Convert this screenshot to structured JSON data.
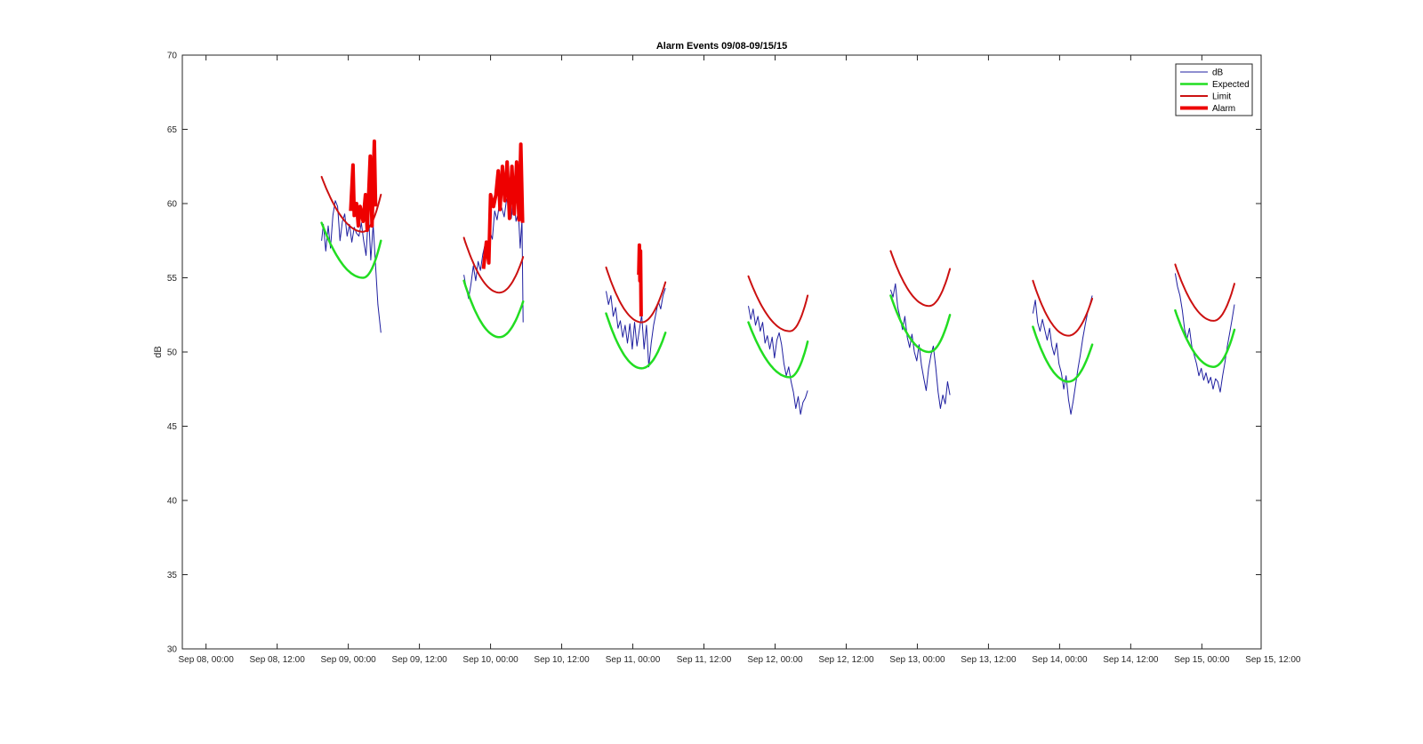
{
  "chart_data": {
    "type": "line",
    "title": "Alarm Events 09/08-09/15/15",
    "ylabel": "dB",
    "xlabel": "",
    "ylim": [
      30,
      70
    ],
    "yticks": [
      30,
      35,
      40,
      45,
      50,
      55,
      60,
      65,
      70
    ],
    "xlim_hours": [
      -4,
      178
    ],
    "xticks": [
      {
        "label": "Sep 08, 00:00",
        "hour": 0
      },
      {
        "label": "Sep 08, 12:00",
        "hour": 12
      },
      {
        "label": "Sep 09, 00:00",
        "hour": 24
      },
      {
        "label": "Sep 09, 12:00",
        "hour": 36
      },
      {
        "label": "Sep 10, 00:00",
        "hour": 48
      },
      {
        "label": "Sep 10, 12:00",
        "hour": 60
      },
      {
        "label": "Sep 11, 00:00",
        "hour": 72
      },
      {
        "label": "Sep 11, 12:00",
        "hour": 84
      },
      {
        "label": "Sep 12, 00:00",
        "hour": 96
      },
      {
        "label": "Sep 12, 12:00",
        "hour": 108
      },
      {
        "label": "Sep 13, 00:00",
        "hour": 120
      },
      {
        "label": "Sep 13, 12:00",
        "hour": 132
      },
      {
        "label": "Sep 14, 00:00",
        "hour": 144
      },
      {
        "label": "Sep 14, 12:00",
        "hour": 156
      },
      {
        "label": "Sep 15, 00:00",
        "hour": 168
      },
      {
        "label": "Sep 15, 12:00",
        "hour": 180
      }
    ],
    "legend": {
      "placement": "top-right",
      "entries": [
        {
          "name": "dB",
          "color": "#1f1fa0",
          "width": 1
        },
        {
          "name": "Expected",
          "color": "#22dd22",
          "width": 2.5
        },
        {
          "name": "Limit",
          "color": "#cc1111",
          "width": 2
        },
        {
          "name": "Alarm",
          "color": "#ee0000",
          "width": 4
        }
      ]
    },
    "segments": [
      {
        "t0": 19.5,
        "t1": 29.5,
        "expected": {
          "start": 58.7,
          "min": 55.0,
          "tmin": 26.5,
          "end": 57.5
        },
        "limit": {
          "start": 61.8,
          "min": 58.1,
          "tmin": 26.5,
          "end": 60.6
        },
        "db": [
          [
            19.5,
            57.5
          ],
          [
            19.8,
            58.6
          ],
          [
            20.2,
            56.8
          ],
          [
            20.6,
            58.5
          ],
          [
            21.0,
            57.0
          ],
          [
            21.4,
            59.2
          ],
          [
            21.8,
            60.2
          ],
          [
            22.2,
            59.8
          ],
          [
            22.6,
            57.5
          ],
          [
            23.0,
            58.8
          ],
          [
            23.4,
            59.3
          ],
          [
            23.8,
            57.8
          ],
          [
            24.2,
            58.6
          ],
          [
            24.6,
            57.4
          ],
          [
            25.0,
            58.4
          ],
          [
            25.4,
            58.0
          ],
          [
            25.8,
            57.8
          ],
          [
            26.2,
            58.7
          ],
          [
            26.6,
            57.5
          ],
          [
            27.0,
            56.5
          ],
          [
            27.4,
            59.4
          ],
          [
            27.8,
            56.2
          ],
          [
            28.2,
            58.6
          ],
          [
            28.6,
            55.8
          ],
          [
            29.0,
            53.2
          ],
          [
            29.5,
            51.3
          ]
        ],
        "alarm": [
          [
            24.4,
            59.5
          ],
          [
            24.8,
            62.6
          ],
          [
            25.0,
            59.2
          ],
          [
            25.4,
            60.0
          ],
          [
            25.7,
            58.5
          ],
          [
            26.0,
            59.8
          ],
          [
            26.5,
            58.8
          ],
          [
            26.9,
            60.6
          ],
          [
            27.2,
            58.2
          ],
          [
            27.7,
            63.2
          ],
          [
            28.0,
            58.5
          ],
          [
            28.4,
            64.2
          ],
          [
            28.6,
            59.8
          ]
        ]
      },
      {
        "t0": 43.5,
        "t1": 53.5,
        "expected": {
          "start": 54.8,
          "min": 51.0,
          "tmin": 49.5,
          "end": 53.4
        },
        "limit": {
          "start": 57.7,
          "min": 54.0,
          "tmin": 49.5,
          "end": 56.4
        },
        "db": [
          [
            43.5,
            55.2
          ],
          [
            43.9,
            54.3
          ],
          [
            44.3,
            53.6
          ],
          [
            44.7,
            54.6
          ],
          [
            45.1,
            55.8
          ],
          [
            45.5,
            54.8
          ],
          [
            45.9,
            56.1
          ],
          [
            46.3,
            55.5
          ],
          [
            46.7,
            56.6
          ],
          [
            47.1,
            57.3
          ],
          [
            47.5,
            56.4
          ],
          [
            47.9,
            58.1
          ],
          [
            48.3,
            57.6
          ],
          [
            48.7,
            59.5
          ],
          [
            49.1,
            58.9
          ],
          [
            49.5,
            60.0
          ],
          [
            49.9,
            59.7
          ],
          [
            50.3,
            59.1
          ],
          [
            50.7,
            60.3
          ],
          [
            51.1,
            59.8
          ],
          [
            51.5,
            59.0
          ],
          [
            51.9,
            60.5
          ],
          [
            52.3,
            58.8
          ],
          [
            52.7,
            59.4
          ],
          [
            53.0,
            57.0
          ],
          [
            53.3,
            58.9
          ],
          [
            53.5,
            52.0
          ]
        ],
        "alarm": [
          [
            46.8,
            55.6
          ],
          [
            47.3,
            57.4
          ],
          [
            47.7,
            56.0
          ],
          [
            48.0,
            60.6
          ],
          [
            48.5,
            59.8
          ],
          [
            48.9,
            60.6
          ],
          [
            49.3,
            62.2
          ],
          [
            49.6,
            59.6
          ],
          [
            50.0,
            62.5
          ],
          [
            50.4,
            60.2
          ],
          [
            50.8,
            62.8
          ],
          [
            51.2,
            59.0
          ],
          [
            51.6,
            62.5
          ],
          [
            52.0,
            59.3
          ],
          [
            52.4,
            62.8
          ],
          [
            52.8,
            58.9
          ],
          [
            53.1,
            64.0
          ],
          [
            53.4,
            58.7
          ]
        ]
      },
      {
        "t0": 67.5,
        "t1": 77.5,
        "expected": {
          "start": 52.6,
          "min": 48.9,
          "tmin": 73.5,
          "end": 51.3
        },
        "limit": {
          "start": 55.7,
          "min": 52.0,
          "tmin": 73.5,
          "end": 54.7
        },
        "db": [
          [
            67.5,
            54.1
          ],
          [
            67.9,
            53.2
          ],
          [
            68.3,
            53.8
          ],
          [
            68.7,
            52.4
          ],
          [
            69.1,
            53.0
          ],
          [
            69.5,
            51.6
          ],
          [
            69.9,
            52.1
          ],
          [
            70.3,
            51.0
          ],
          [
            70.7,
            51.8
          ],
          [
            71.1,
            50.6
          ],
          [
            71.5,
            51.9
          ],
          [
            71.9,
            50.2
          ],
          [
            72.3,
            52.0
          ],
          [
            72.7,
            50.4
          ],
          [
            73.1,
            51.5
          ],
          [
            73.5,
            52.5
          ],
          [
            73.9,
            50.2
          ],
          [
            74.3,
            51.8
          ],
          [
            74.7,
            49.0
          ],
          [
            75.1,
            50.6
          ],
          [
            75.5,
            51.8
          ],
          [
            75.9,
            52.6
          ],
          [
            76.3,
            53.4
          ],
          [
            76.7,
            52.9
          ],
          [
            77.1,
            53.8
          ],
          [
            77.5,
            54.3
          ]
        ],
        "alarm": [
          [
            73.0,
            55.2
          ],
          [
            73.1,
            57.2
          ],
          [
            73.2,
            54.8
          ],
          [
            73.3,
            56.8
          ],
          [
            73.4,
            52.4
          ]
        ]
      },
      {
        "t0": 91.5,
        "t1": 101.5,
        "expected": {
          "start": 52.0,
          "min": 48.3,
          "tmin": 98.5,
          "end": 50.7
        },
        "limit": {
          "start": 55.1,
          "min": 51.4,
          "tmin": 98.5,
          "end": 53.8
        },
        "db": [
          [
            91.5,
            53.1
          ],
          [
            91.9,
            52.2
          ],
          [
            92.3,
            52.9
          ],
          [
            92.7,
            51.8
          ],
          [
            93.1,
            52.4
          ],
          [
            93.5,
            51.4
          ],
          [
            93.9,
            52.0
          ],
          [
            94.3,
            50.6
          ],
          [
            94.7,
            51.1
          ],
          [
            95.1,
            50.2
          ],
          [
            95.5,
            51.0
          ],
          [
            95.9,
            49.6
          ],
          [
            96.3,
            50.8
          ],
          [
            96.7,
            51.3
          ],
          [
            97.1,
            50.5
          ],
          [
            97.5,
            49.2
          ],
          [
            97.9,
            48.4
          ],
          [
            98.3,
            49.0
          ],
          [
            98.7,
            48.0
          ],
          [
            99.1,
            47.3
          ],
          [
            99.5,
            46.2
          ],
          [
            99.9,
            47.0
          ],
          [
            100.3,
            45.8
          ],
          [
            100.7,
            46.6
          ],
          [
            101.1,
            46.9
          ],
          [
            101.5,
            47.4
          ]
        ],
        "alarm": []
      },
      {
        "t0": 115.5,
        "t1": 125.5,
        "expected": {
          "start": 53.8,
          "min": 50.0,
          "tmin": 122.0,
          "end": 52.5
        },
        "limit": {
          "start": 56.8,
          "min": 53.1,
          "tmin": 122.0,
          "end": 55.6
        },
        "db": [
          [
            115.5,
            54.2
          ],
          [
            115.9,
            53.7
          ],
          [
            116.3,
            54.6
          ],
          [
            116.7,
            53.0
          ],
          [
            117.1,
            52.3
          ],
          [
            117.5,
            51.5
          ],
          [
            117.9,
            52.4
          ],
          [
            118.3,
            51.0
          ],
          [
            118.7,
            50.3
          ],
          [
            119.1,
            51.2
          ],
          [
            119.5,
            50.0
          ],
          [
            119.9,
            49.4
          ],
          [
            120.3,
            50.5
          ],
          [
            120.7,
            49.1
          ],
          [
            121.1,
            48.2
          ],
          [
            121.5,
            47.4
          ],
          [
            121.9,
            48.9
          ],
          [
            122.3,
            49.8
          ],
          [
            122.7,
            50.4
          ],
          [
            123.1,
            49.0
          ],
          [
            123.5,
            47.3
          ],
          [
            123.9,
            46.2
          ],
          [
            124.3,
            47.1
          ],
          [
            124.7,
            46.5
          ],
          [
            125.1,
            48.0
          ],
          [
            125.5,
            47.1
          ]
        ],
        "alarm": []
      },
      {
        "t0": 139.5,
        "t1": 149.5,
        "expected": {
          "start": 51.7,
          "min": 48.0,
          "tmin": 145.5,
          "end": 50.5
        },
        "limit": {
          "start": 54.8,
          "min": 51.1,
          "tmin": 145.5,
          "end": 53.6
        },
        "db": [
          [
            139.5,
            52.6
          ],
          [
            139.9,
            53.5
          ],
          [
            140.3,
            52.0
          ],
          [
            140.7,
            51.4
          ],
          [
            141.1,
            52.2
          ],
          [
            141.5,
            51.5
          ],
          [
            141.9,
            50.8
          ],
          [
            142.3,
            51.6
          ],
          [
            142.7,
            50.4
          ],
          [
            143.1,
            49.8
          ],
          [
            143.5,
            50.6
          ],
          [
            143.9,
            49.2
          ],
          [
            144.3,
            48.6
          ],
          [
            144.7,
            47.5
          ],
          [
            145.1,
            48.4
          ],
          [
            145.5,
            46.8
          ],
          [
            145.9,
            45.8
          ],
          [
            146.3,
            46.7
          ],
          [
            146.7,
            47.8
          ],
          [
            147.1,
            48.9
          ],
          [
            147.5,
            49.8
          ],
          [
            147.9,
            50.9
          ],
          [
            148.3,
            51.8
          ],
          [
            148.7,
            52.6
          ],
          [
            149.1,
            53.2
          ],
          [
            149.5,
            53.8
          ]
        ],
        "alarm": []
      },
      {
        "t0": 163.5,
        "t1": 173.5,
        "expected": {
          "start": 52.8,
          "min": 49.0,
          "tmin": 170.0,
          "end": 51.5
        },
        "limit": {
          "start": 55.9,
          "min": 52.1,
          "tmin": 170.0,
          "end": 54.6
        },
        "db": [
          [
            163.5,
            55.3
          ],
          [
            163.9,
            54.4
          ],
          [
            164.3,
            53.8
          ],
          [
            164.7,
            52.8
          ],
          [
            165.1,
            51.5
          ],
          [
            165.5,
            50.9
          ],
          [
            165.9,
            51.6
          ],
          [
            166.3,
            50.4
          ],
          [
            166.7,
            49.8
          ],
          [
            167.1,
            49.2
          ],
          [
            167.5,
            48.4
          ],
          [
            167.9,
            48.9
          ],
          [
            168.3,
            48.1
          ],
          [
            168.7,
            48.6
          ],
          [
            169.1,
            47.9
          ],
          [
            169.5,
            48.3
          ],
          [
            169.9,
            47.5
          ],
          [
            170.3,
            48.2
          ],
          [
            170.7,
            48.0
          ],
          [
            171.1,
            47.3
          ],
          [
            171.5,
            48.4
          ],
          [
            171.9,
            49.3
          ],
          [
            172.3,
            50.4
          ],
          [
            172.7,
            51.3
          ],
          [
            173.1,
            52.2
          ],
          [
            173.5,
            53.2
          ]
        ],
        "alarm": []
      }
    ]
  }
}
